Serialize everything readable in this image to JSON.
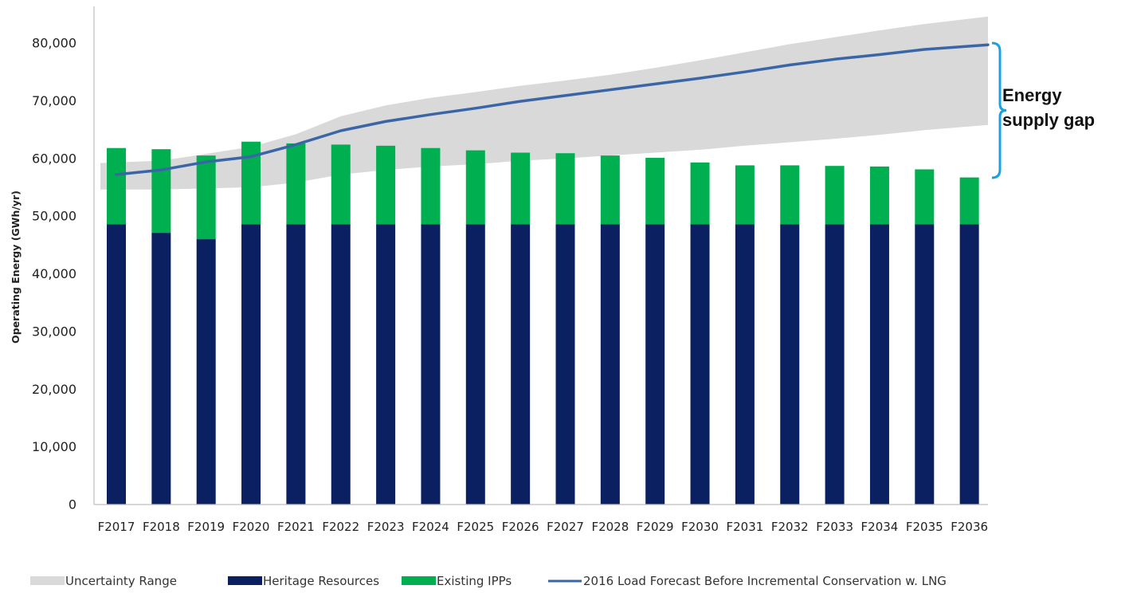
{
  "chart_data": {
    "type": "bar",
    "stacked": true,
    "ylabel": "Operating Energy (GWh/yr)",
    "xlabel": "",
    "ylim": [
      0,
      85000
    ],
    "yticks": [
      "0",
      "10,000",
      "20,000",
      "30,000",
      "40,000",
      "50,000",
      "60,000",
      "70,000",
      "80,000"
    ],
    "ytick_values": [
      0,
      10000,
      20000,
      30000,
      40000,
      50000,
      60000,
      70000,
      80000
    ],
    "categories": [
      "F2017",
      "F2018",
      "F2019",
      "F2020",
      "F2021",
      "F2022",
      "F2023",
      "F2024",
      "F2025",
      "F2026",
      "F2027",
      "F2028",
      "F2029",
      "F2030",
      "F2031",
      "F2032",
      "F2033",
      "F2034",
      "F2035",
      "F2036"
    ],
    "series": [
      {
        "name": "Heritage Resources",
        "color": "#0a2060",
        "values": [
          48600,
          47100,
          46000,
          48600,
          48600,
          48600,
          48600,
          48600,
          48600,
          48600,
          48600,
          48600,
          48600,
          48600,
          48600,
          48600,
          48600,
          48600,
          48600,
          48600
        ]
      },
      {
        "name": "Existing IPPs",
        "color": "#00b050",
        "values": [
          13200,
          14500,
          14500,
          14300,
          14000,
          13800,
          13600,
          13200,
          12800,
          12400,
          12300,
          11900,
          11500,
          10700,
          10200,
          10200,
          10100,
          10000,
          9500,
          8100
        ]
      }
    ],
    "uncertainty": {
      "name": "Uncertainty Range",
      "color": "#d9d9d9",
      "low": [
        54600,
        54600,
        54800,
        55000,
        55800,
        57200,
        58000,
        58600,
        59000,
        59600,
        60000,
        60500,
        61000,
        61500,
        62200,
        62800,
        63400,
        64100,
        64900,
        65800
      ],
      "high": [
        59200,
        59600,
        60800,
        62000,
        64200,
        67300,
        69200,
        70500,
        71500,
        72600,
        73500,
        74500,
        75700,
        77000,
        78400,
        79800,
        81000,
        82200,
        83300,
        84600
      ]
    },
    "line": {
      "name": "2016 Load Forecast Before Incremental Conservation w. LNG",
      "color": "#3a66a7",
      "values": [
        57200,
        58000,
        59400,
        60300,
        62400,
        64800,
        66400,
        67600,
        68700,
        69900,
        70900,
        71900,
        72900,
        73900,
        75000,
        76200,
        77200,
        78000,
        78900,
        79700
      ]
    },
    "annotation": {
      "lines": [
        "Energy",
        "supply gap"
      ],
      "brace_color": "#1ba1e2"
    },
    "grid": false,
    "legend_position": "bottom"
  }
}
